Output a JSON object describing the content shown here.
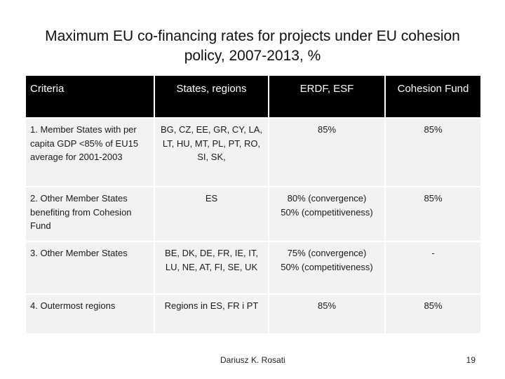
{
  "title": {
    "line1": "Maximum EU co-financing rates for projects under EU cohesion",
    "line2": "policy, 2007-2013, %"
  },
  "table": {
    "headers": [
      "Criteria",
      "States, regions",
      "ERDF, ESF",
      "Cohesion Fund"
    ],
    "rows": [
      {
        "criteria": "1. Member States with per capita GDP <85% of EU15 average for 2001-2003",
        "states": "BG, CZ, EE, GR, CY, LA, LT, HU, MT, PL, PT, RO, SI, SK,",
        "erdf": [
          "85%"
        ],
        "cohesion": "85%"
      },
      {
        "criteria": "2. Other Member States benefiting from Cohesion Fund",
        "states": "ES",
        "erdf": [
          "80% (convergence)",
          "50% (competitiveness)"
        ],
        "cohesion": "85%"
      },
      {
        "criteria": "3. Other Member States",
        "states": "BE, DK, DE, FR, IE, IT, LU, NE, AT, FI, SE, UK",
        "erdf": [
          "75% (convergence)",
          "50% (competitiveness)"
        ],
        "cohesion": "-"
      },
      {
        "criteria": "4. Outermost regions",
        "states": "Regions in ES, FR i PT",
        "erdf": [
          "85%"
        ],
        "cohesion": "85%"
      }
    ]
  },
  "footer": {
    "author": "Dariusz K. Rosati",
    "page": "19"
  }
}
